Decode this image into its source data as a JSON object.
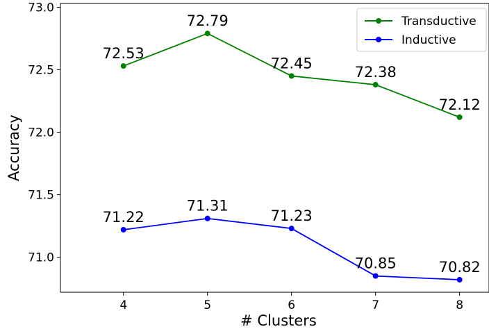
{
  "chart_data": {
    "type": "line",
    "title": "",
    "xlabel": "# Clusters",
    "ylabel": "Accuracy",
    "x": [
      4,
      5,
      6,
      7,
      8
    ],
    "x_tick_labels": [
      "4",
      "5",
      "6",
      "7",
      "8"
    ],
    "xlim": [
      3.25,
      8.35
    ],
    "ylim": [
      70.72,
      73.03
    ],
    "y_ticks": [
      71.0,
      71.5,
      72.0,
      72.5,
      73.0
    ],
    "y_tick_labels": [
      "71.0",
      "71.5",
      "72.0",
      "72.5",
      "73.0"
    ],
    "grid": false,
    "legend_position": "top-right",
    "series": [
      {
        "name": "Transductive",
        "color": "#008000",
        "values": [
          72.53,
          72.79,
          72.45,
          72.38,
          72.12
        ],
        "labels": [
          "72.53",
          "72.79",
          "72.45",
          "72.38",
          "72.12"
        ]
      },
      {
        "name": "Inductive",
        "color": "#0000ff",
        "values": [
          71.22,
          71.31,
          71.23,
          70.85,
          70.82
        ],
        "labels": [
          "71.22",
          "71.31",
          "71.23",
          "70.85",
          "70.82"
        ]
      }
    ]
  }
}
